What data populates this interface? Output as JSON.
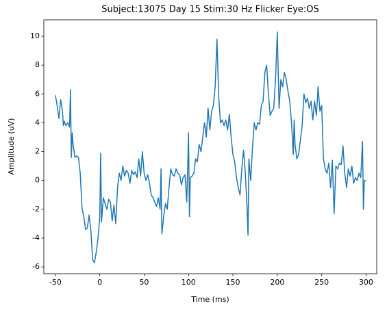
{
  "chart_data": {
    "type": "line",
    "title": "Subject:13075 Day 15 Stim:30 Hz Flicker Eye:OS",
    "xlabel": "Time (ms)",
    "ylabel": "Amplitude (uV)",
    "xlim": [
      -63,
      312
    ],
    "ylim": [
      -6.47,
      11.14
    ],
    "xticks": [
      -50,
      0,
      50,
      100,
      150,
      200,
      250,
      300
    ],
    "yticks": [
      -6,
      -4,
      -2,
      0,
      2,
      4,
      6,
      8,
      10
    ],
    "grid": false,
    "x": [
      -50,
      -48,
      -46,
      -44,
      -42,
      -41,
      -40,
      -38,
      -36,
      -34,
      -33,
      -32,
      -31,
      -30,
      -28,
      -26,
      -24,
      -22,
      -20,
      -18,
      -16,
      -14,
      -12,
      -10,
      -8,
      -6,
      -4,
      -2,
      0,
      1,
      2,
      4,
      6,
      8,
      10,
      12,
      14,
      16,
      18,
      20,
      22,
      24,
      26,
      28,
      30,
      32,
      34,
      36,
      38,
      40,
      42,
      44,
      46,
      48,
      50,
      52,
      54,
      56,
      58,
      60,
      62,
      64,
      66,
      68,
      69,
      70,
      72,
      74,
      76,
      78,
      80,
      82,
      84,
      86,
      88,
      90,
      92,
      94,
      96,
      98,
      100,
      101,
      102,
      104,
      106,
      108,
      110,
      112,
      114,
      116,
      118,
      120,
      122,
      124,
      126,
      128,
      130,
      132,
      134,
      136,
      138,
      140,
      142,
      144,
      146,
      148,
      150,
      152,
      154,
      156,
      158,
      160,
      162,
      164,
      166,
      167,
      168,
      170,
      172,
      174,
      176,
      178,
      180,
      182,
      184,
      186,
      188,
      190,
      192,
      194,
      196,
      198,
      200,
      202,
      204,
      206,
      208,
      210,
      212,
      214,
      216,
      218,
      219,
      220,
      222,
      224,
      226,
      228,
      230,
      232,
      234,
      236,
      238,
      240,
      242,
      244,
      246,
      248,
      250,
      252,
      254,
      256,
      258,
      260,
      262,
      264,
      266,
      268,
      270,
      272,
      274,
      276,
      278,
      280,
      282,
      284,
      286,
      288,
      290,
      292,
      294,
      296,
      297,
      298,
      300
    ],
    "series": [
      {
        "name": "OS",
        "color": "#1f77b4",
        "values": [
          5.9,
          5.2,
          4.3,
          5.6,
          4.8,
          3.8,
          4.1,
          3.8,
          4.0,
          3.7,
          6.3,
          1.6,
          3.3,
          2.5,
          1.6,
          1.7,
          1.6,
          0.5,
          -1.9,
          -2.5,
          -3.4,
          -3.3,
          -2.4,
          -3.5,
          -5.5,
          -5.7,
          -5.0,
          -4.0,
          -2.6,
          1.9,
          -2.9,
          -1.2,
          -1.6,
          -2.0,
          -1.3,
          -1.5,
          -2.8,
          -1.7,
          -3.0,
          -0.5,
          0.5,
          0.0,
          1.0,
          0.3,
          0.7,
          0.5,
          -0.2,
          0.7,
          0.4,
          0.6,
          0.2,
          1.5,
          0.3,
          2.0,
          0.5,
          0.0,
          0.4,
          -0.2,
          -1.0,
          -1.2,
          -1.5,
          -1.8,
          -1.2,
          -2.0,
          0.8,
          -3.7,
          -2.5,
          -1.6,
          -2.0,
          -0.5,
          0.8,
          0.4,
          0.3,
          0.8,
          0.5,
          0.4,
          -0.3,
          0.2,
          0.4,
          -1.5,
          3.3,
          -2.5,
          0.2,
          0.3,
          0.5,
          1.5,
          1.3,
          2.5,
          2.0,
          3.0,
          4.0,
          3.0,
          5.0,
          3.5,
          4.8,
          5.2,
          6.5,
          9.8,
          5.8,
          4.0,
          4.2,
          3.8,
          4.2,
          3.5,
          4.6,
          3.0,
          1.8,
          1.3,
          0.2,
          -0.5,
          -1.0,
          0.8,
          2.1,
          0.5,
          -2.0,
          -3.8,
          1.5,
          0.0,
          2.2,
          4.0,
          3.5,
          4.0,
          3.9,
          5.2,
          5.5,
          7.5,
          8.0,
          6.0,
          4.5,
          4.8,
          5.0,
          7.0,
          10.3,
          5.0,
          7.0,
          6.5,
          7.5,
          7.0,
          6.2,
          5.5,
          4.0,
          1.8,
          4.2,
          2.5,
          1.5,
          1.8,
          2.8,
          3.8,
          6.0,
          5.4,
          5.7,
          5.0,
          5.5,
          4.2,
          5.5,
          4.5,
          6.5,
          4.8,
          5.2,
          1.5,
          0.8,
          0.5,
          1.2,
          -0.5,
          1.4,
          -2.3,
          1.0,
          0.8,
          1.2,
          1.1,
          2.4,
          0.5,
          -0.5,
          0.8,
          0.3,
          1.0,
          -0.2,
          0.2,
          0.0,
          0.5,
          0.2,
          2.7,
          -2.0,
          0.0,
          0.0
        ]
      }
    ]
  }
}
